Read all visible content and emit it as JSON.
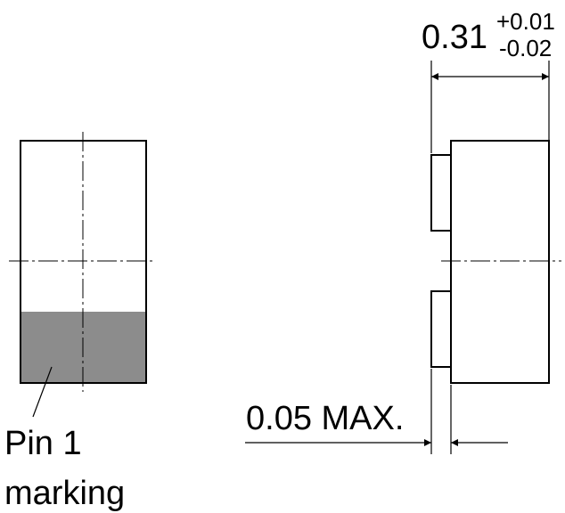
{
  "labels": {
    "pin1_line1": "Pin 1",
    "pin1_line2": "marking",
    "thickness_value": "0.31",
    "thickness_tol_plus": "+0.01",
    "thickness_tol_minus": "-0.02",
    "pad_protrusion": "0.05 MAX."
  },
  "colors": {
    "marking_fill": "#8c8c8c",
    "stroke": "#000000",
    "background": "#ffffff"
  }
}
